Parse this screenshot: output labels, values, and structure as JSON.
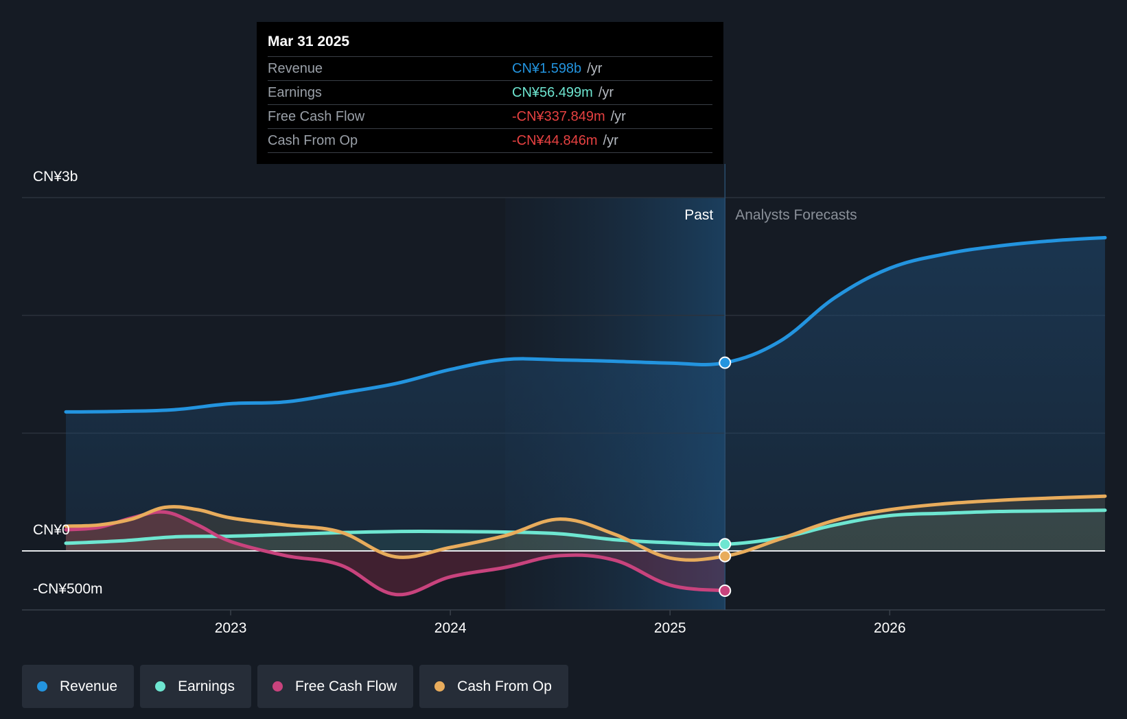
{
  "chart_data": {
    "type": "area",
    "title": "",
    "y_ticks": [
      "CN¥3b",
      "CN¥0",
      "-CN¥500m"
    ],
    "ylim": [
      -500000000,
      3000000000
    ],
    "x_ticks": [
      "2023",
      "2024",
      "2025",
      "2026"
    ],
    "xlim": [
      2022.2,
      2026.98
    ],
    "highlight_start": 2024.25,
    "divider_x": 2025.25,
    "past_label": "Past",
    "forecast_label": "Analysts Forecasts",
    "series": [
      {
        "name": "Revenue",
        "color": "#2394df",
        "points": [
          [
            2022.25,
            1180000000
          ],
          [
            2022.5,
            1185000000
          ],
          [
            2022.75,
            1200000000
          ],
          [
            2023.0,
            1250000000
          ],
          [
            2023.25,
            1265000000
          ],
          [
            2023.5,
            1340000000
          ],
          [
            2023.75,
            1420000000
          ],
          [
            2024.0,
            1540000000
          ],
          [
            2024.25,
            1625000000
          ],
          [
            2024.5,
            1622000000
          ],
          [
            2024.75,
            1610000000
          ],
          [
            2025.0,
            1595000000
          ],
          [
            2025.25,
            1598000000
          ],
          [
            2025.5,
            1780000000
          ],
          [
            2025.75,
            2150000000
          ],
          [
            2026.0,
            2400000000
          ],
          [
            2026.25,
            2520000000
          ],
          [
            2026.5,
            2590000000
          ],
          [
            2026.75,
            2635000000
          ],
          [
            2026.98,
            2660000000
          ]
        ]
      },
      {
        "name": "Earnings",
        "color": "#6ee6d1",
        "points": [
          [
            2022.25,
            65000000
          ],
          [
            2022.5,
            85000000
          ],
          [
            2022.75,
            120000000
          ],
          [
            2023.0,
            125000000
          ],
          [
            2023.25,
            140000000
          ],
          [
            2023.5,
            155000000
          ],
          [
            2023.75,
            165000000
          ],
          [
            2024.0,
            165000000
          ],
          [
            2024.25,
            160000000
          ],
          [
            2024.5,
            145000000
          ],
          [
            2024.75,
            95000000
          ],
          [
            2025.0,
            70000000
          ],
          [
            2025.25,
            56499000
          ],
          [
            2025.5,
            110000000
          ],
          [
            2025.75,
            220000000
          ],
          [
            2026.0,
            300000000
          ],
          [
            2026.25,
            320000000
          ],
          [
            2026.5,
            335000000
          ],
          [
            2026.75,
            340000000
          ],
          [
            2026.98,
            345000000
          ]
        ]
      },
      {
        "name": "Free Cash Flow",
        "color": "#c8437d",
        "points": [
          [
            2022.25,
            180000000
          ],
          [
            2022.4,
            200000000
          ],
          [
            2022.55,
            280000000
          ],
          [
            2022.7,
            330000000
          ],
          [
            2022.85,
            220000000
          ],
          [
            2023.0,
            80000000
          ],
          [
            2023.25,
            -40000000
          ],
          [
            2023.5,
            -120000000
          ],
          [
            2023.75,
            -370000000
          ],
          [
            2024.0,
            -220000000
          ],
          [
            2024.25,
            -140000000
          ],
          [
            2024.5,
            -40000000
          ],
          [
            2024.75,
            -80000000
          ],
          [
            2025.0,
            -290000000
          ],
          [
            2025.25,
            -337849000
          ]
        ]
      },
      {
        "name": "Cash From Op",
        "color": "#e8ac5c",
        "points": [
          [
            2022.25,
            210000000
          ],
          [
            2022.4,
            220000000
          ],
          [
            2022.55,
            270000000
          ],
          [
            2022.7,
            370000000
          ],
          [
            2022.85,
            350000000
          ],
          [
            2023.0,
            280000000
          ],
          [
            2023.25,
            220000000
          ],
          [
            2023.5,
            160000000
          ],
          [
            2023.75,
            -50000000
          ],
          [
            2024.0,
            30000000
          ],
          [
            2024.25,
            130000000
          ],
          [
            2024.5,
            270000000
          ],
          [
            2024.75,
            140000000
          ],
          [
            2025.0,
            -60000000
          ],
          [
            2025.25,
            -44846000
          ],
          [
            2025.5,
            100000000
          ],
          [
            2025.75,
            260000000
          ],
          [
            2026.0,
            350000000
          ],
          [
            2026.25,
            400000000
          ],
          [
            2026.5,
            430000000
          ],
          [
            2026.75,
            450000000
          ],
          [
            2026.98,
            465000000
          ]
        ]
      }
    ]
  },
  "tooltip": {
    "date": "Mar 31 2025",
    "rows": [
      {
        "label": "Revenue",
        "value": "CN¥1.598b",
        "unit": "/yr",
        "color": "#2394df"
      },
      {
        "label": "Earnings",
        "value": "CN¥56.499m",
        "unit": "/yr",
        "color": "#6ee6d1"
      },
      {
        "label": "Free Cash Flow",
        "value": "-CN¥337.849m",
        "unit": "/yr",
        "color": "#e64141"
      },
      {
        "label": "Cash From Op",
        "value": "-CN¥44.846m",
        "unit": "/yr",
        "color": "#e64141"
      }
    ]
  },
  "legend": [
    {
      "label": "Revenue",
      "color": "#2394df"
    },
    {
      "label": "Earnings",
      "color": "#6ee6d1"
    },
    {
      "label": "Free Cash Flow",
      "color": "#c8437d"
    },
    {
      "label": "Cash From Op",
      "color": "#e8ac5c"
    }
  ]
}
